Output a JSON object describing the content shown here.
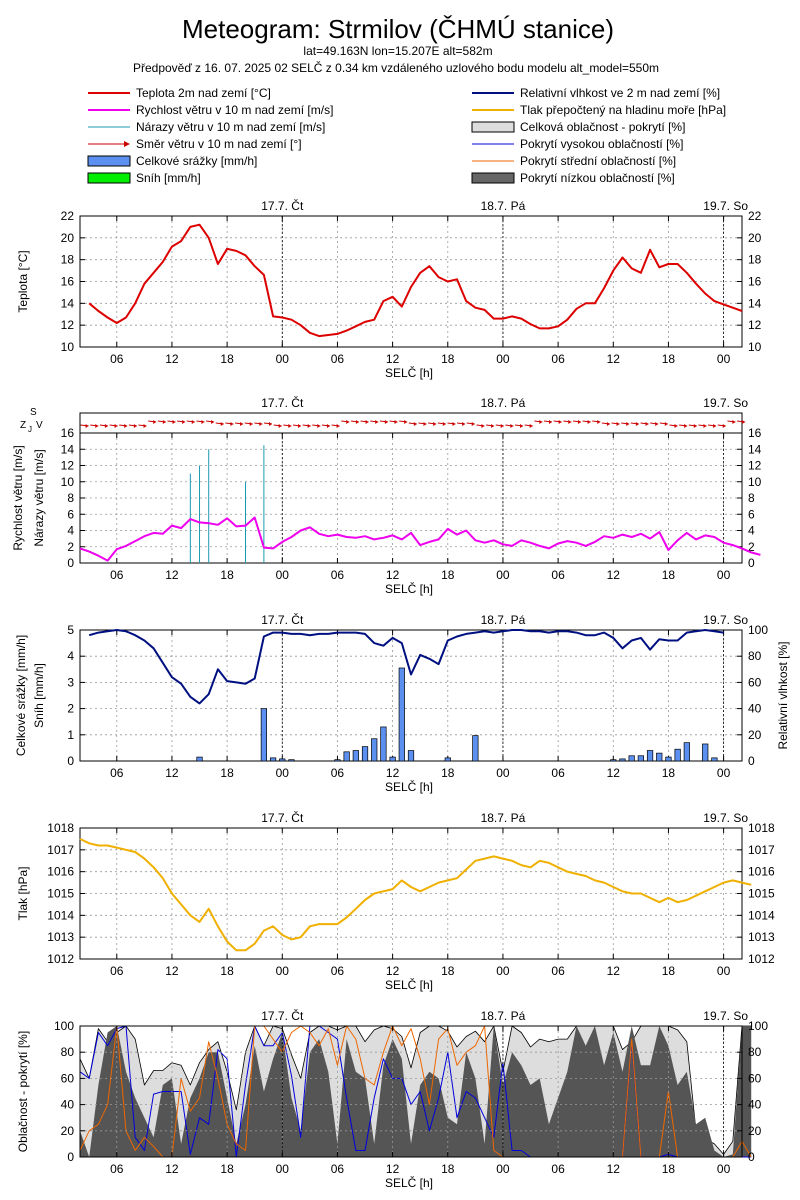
{
  "header": {
    "title": "Meteogram: Strmilov (ČHMÚ stanice)",
    "coords": "lat=49.163N lon=15.207E alt=582m",
    "forecast": "Předpověď z 16. 07. 2025 02 SELČ z 0.34 km vzdáleného uzlového bodu modelu alt_model=550m"
  },
  "legend": {
    "left": [
      {
        "label": "Teplota 2m nad zemí [°C]",
        "kind": "line",
        "color": "#dd0000"
      },
      {
        "label": "Rychlost větru v 10 m nad zemí [m/s]",
        "kind": "line",
        "color": "#ee00ee"
      },
      {
        "label": "Nárazy větru v 10 m nad zemí [m/s]",
        "kind": "thin",
        "color": "#1a9ab0"
      },
      {
        "label": "Směr větru v 10 m nad zemí [°]",
        "kind": "arrow",
        "color": "#cc0000"
      },
      {
        "label": "Celkové srážky [mm/h]",
        "kind": "box",
        "color": "#5b8ff0"
      },
      {
        "label": "Sníh [mm/h]",
        "kind": "box",
        "color": "#00ee00"
      }
    ],
    "right": [
      {
        "label": "Relativní vlhkost ve 2 m nad zemí [%]",
        "kind": "line",
        "color": "#001080"
      },
      {
        "label": "Tlak přepočtený na hladinu moře [hPa]",
        "kind": "line",
        "color": "#f0b000"
      },
      {
        "label": "Celková oblačnost - pokrytí [%]",
        "kind": "box",
        "color": "#dddddd"
      },
      {
        "label": "Pokrytí vysokou oblačností [%]",
        "kind": "thin",
        "color": "#0000dd"
      },
      {
        "label": "Pokrytí střední oblačností [%]",
        "kind": "thin",
        "color": "#ee6600"
      },
      {
        "label": "Pokrytí nízkou oblačností [%]",
        "kind": "box",
        "color": "#666666"
      }
    ]
  },
  "days": [
    "17.7. Čt",
    "18.7. Pá",
    "19.7. So"
  ],
  "xlabel": "SELČ [h]",
  "xticks": [
    "06",
    "12",
    "18",
    "00",
    "06",
    "12",
    "18",
    "00",
    "06",
    "12",
    "18",
    "00"
  ],
  "chart_data": [
    {
      "type": "line",
      "ylabel": "Teplota [°C]",
      "ylim": [
        10,
        22
      ],
      "x_start_hour": 3,
      "series": [
        {
          "name": "Teplota 2m nad zemí [°C]",
          "color": "#dd0000",
          "values": [
            14,
            13.3,
            12.7,
            12.2,
            12.7,
            14,
            15.8,
            16.8,
            17.8,
            19.2,
            19.7,
            21,
            21.2,
            20,
            17.6,
            19,
            18.8,
            18.4,
            17.4,
            16.6,
            12.8,
            12.7,
            12.5,
            12,
            11.3,
            11,
            11.1,
            11.2,
            11.5,
            11.9,
            12.3,
            12.5,
            14.2,
            14.6,
            13.7,
            15.5,
            16.8,
            17.4,
            16.4,
            16,
            16.2,
            14.2,
            13.6,
            13.4,
            12.6,
            12.6,
            12.8,
            12.6,
            12.1,
            11.7,
            11.7,
            11.9,
            12.5,
            13.5,
            14,
            14,
            15.4,
            17,
            18.2,
            17.2,
            16.8,
            18.9,
            17.3,
            17.6,
            17.6,
            16.8,
            15.8,
            14.9,
            14.2,
            13.9,
            13.6,
            13.3
          ]
        }
      ]
    },
    {
      "type": "line",
      "ylabel": [
        "Rychlost větru [m/s]",
        "Nárazy větru [m/s]"
      ],
      "ylim": [
        0,
        16
      ],
      "x_start_hour": 3,
      "direction_label": "Z J S V",
      "series": [
        {
          "name": "Rychlost větru v 10 m nad zemí [m/s]",
          "color": "#ee00ee",
          "values": [
            1.8,
            1.4,
            0.9,
            0.3,
            1.7,
            2.1,
            2.7,
            3.3,
            3.7,
            3.6,
            4.6,
            4.3,
            5.4,
            5,
            4.9,
            4.7,
            5.5,
            4.5,
            4.6,
            5.6,
            1.9,
            1.8,
            2.6,
            3.2,
            4,
            4.4,
            3.6,
            3.3,
            3.5,
            3.2,
            3.1,
            3.3,
            2.9,
            3.1,
            3.4,
            2.9,
            3.7,
            2.2,
            2.6,
            2.9,
            4.2,
            3.5,
            4,
            2.8,
            2.5,
            2.8,
            2.3,
            2.1,
            2.8,
            2.5,
            2.1,
            1.8,
            2.4,
            2.7,
            2.5,
            2.1,
            2.6,
            3.3,
            3.1,
            3.5,
            3.2,
            3.6,
            3,
            3.8,
            1.6,
            2.8,
            3.7,
            2.9,
            3.4,
            3.2,
            2.5,
            2.2,
            1.8,
            1.3,
            1
          ],
          "x_start_hour": 2
        },
        {
          "name": "Nárazy větru v 10 m nad zemí [m/s]",
          "color": "#1a9ab0",
          "points": [
            [
              14,
              11
            ],
            [
              15,
              12
            ],
            [
              16,
              14
            ],
            [
              20,
              10
            ],
            [
              22,
              14.5
            ]
          ]
        }
      ]
    },
    {
      "type": "bar",
      "ylabel": [
        "Celkové srážky [mm/h]",
        "Sníh [mm/h]"
      ],
      "ylabel_right": "Relativní vlhkost [%]",
      "ylim": [
        0,
        5
      ],
      "ylim_right": [
        0,
        100
      ],
      "x_start_hour": 3,
      "series": [
        {
          "name": "Celkové srážky [mm/h]",
          "color": "#5b8ff0",
          "points": [
            [
              15,
              0.15
            ],
            [
              22,
              2
            ],
            [
              23,
              0.12
            ],
            [
              24,
              0.08
            ],
            [
              25,
              0.05
            ],
            [
              30,
              0.05
            ],
            [
              31,
              0.35
            ],
            [
              32,
              0.4
            ],
            [
              33,
              0.55
            ],
            [
              34,
              0.85
            ],
            [
              35,
              1.3
            ],
            [
              36,
              0.15
            ],
            [
              37,
              3.55
            ],
            [
              38,
              0.4
            ],
            [
              42,
              0.12
            ],
            [
              45,
              0.97
            ],
            [
              60,
              0.05
            ],
            [
              61,
              0.08
            ],
            [
              62,
              0.2
            ],
            [
              63,
              0.2
            ],
            [
              64,
              0.4
            ],
            [
              65,
              0.3
            ],
            [
              66,
              0.15
            ],
            [
              67,
              0.45
            ],
            [
              68,
              0.7
            ],
            [
              70,
              0.65
            ],
            [
              71,
              0.12
            ]
          ]
        },
        {
          "name": "Relativní vlhkost ve 2 m nad zemí [%]",
          "color": "#001080",
          "axis": "right",
          "values": [
            96,
            98,
            99,
            100,
            99,
            96,
            92,
            86,
            75,
            64,
            59,
            49,
            44,
            51,
            70,
            61,
            60,
            59,
            63,
            95,
            98,
            98,
            97,
            97,
            96,
            97,
            97,
            98,
            98,
            98,
            97,
            90,
            88,
            94,
            90,
            66,
            81,
            78,
            74,
            92,
            95,
            97,
            98,
            99,
            98,
            99,
            100,
            100,
            99,
            99,
            98,
            99,
            99,
            98,
            96,
            96,
            98,
            94,
            86,
            92,
            94,
            85,
            93,
            92,
            92,
            98,
            99,
            100,
            99,
            98
          ]
        }
      ]
    },
    {
      "type": "line",
      "ylabel": "Tlak [hPa]",
      "ylim": [
        1012,
        1018
      ],
      "x_start_hour": 2,
      "series": [
        {
          "name": "Tlak přepočtený na hladinu moře [hPa]",
          "color": "#f0b000",
          "values": [
            1017.5,
            1017.3,
            1017.2,
            1017.2,
            1017.1,
            1017,
            1016.9,
            1016.6,
            1016.2,
            1015.7,
            1015,
            1014.5,
            1014,
            1013.7,
            1014.3,
            1013.5,
            1012.8,
            1012.4,
            1012.4,
            1012.7,
            1013.3,
            1013.5,
            1013.1,
            1012.9,
            1013,
            1013.5,
            1013.6,
            1013.6,
            1013.6,
            1013.9,
            1014.3,
            1014.7,
            1015,
            1015.1,
            1015.2,
            1015.6,
            1015.3,
            1015.1,
            1015.3,
            1015.5,
            1015.6,
            1015.7,
            1016.1,
            1016.5,
            1016.6,
            1016.7,
            1016.6,
            1016.5,
            1016.3,
            1016.2,
            1016.5,
            1016.4,
            1016.2,
            1016,
            1015.9,
            1015.8,
            1015.6,
            1015.5,
            1015.3,
            1015.1,
            1015,
            1015,
            1014.8,
            1014.6,
            1014.8,
            1014.6,
            1014.7,
            1014.9,
            1015.1,
            1015.3,
            1015.5,
            1015.6,
            1015.5,
            1015.4
          ]
        }
      ]
    },
    {
      "type": "area",
      "ylabel": "Oblačnost - pokrytí [%]",
      "ylim": [
        0,
        100
      ],
      "x_start_hour": 2,
      "series": [
        {
          "name": "Celková oblačnost - pokrytí [%]",
          "color": "#dddddd",
          "values": [
            75,
            60,
            98,
            88,
            95,
            100,
            90,
            55,
            66,
            66,
            72,
            70,
            55,
            72,
            82,
            88,
            65,
            36,
            80,
            100,
            85,
            100,
            98,
            78,
            60,
            95,
            100,
            100,
            97,
            100,
            100,
            88,
            97,
            100,
            98,
            92,
            68,
            95,
            100,
            100,
            96,
            84,
            92,
            96,
            88,
            100,
            65,
            100,
            95,
            84,
            90,
            88,
            90,
            90,
            100,
            100,
            100,
            100,
            100,
            82,
            88,
            100,
            100,
            100,
            100,
            97,
            88,
            20,
            14,
            10,
            2,
            12,
            100,
            100
          ]
        },
        {
          "name": "Pokrytí nízkou oblačností [%]",
          "color": "#555555",
          "values": [
            20,
            0,
            55,
            95,
            100,
            65,
            45,
            30,
            15,
            55,
            60,
            10,
            45,
            60,
            80,
            80,
            45,
            10,
            40,
            85,
            50,
            75,
            95,
            45,
            20,
            80,
            90,
            65,
            10,
            90,
            65,
            60,
            10,
            70,
            90,
            75,
            10,
            55,
            65,
            60,
            30,
            25,
            80,
            60,
            10,
            100,
            55,
            80,
            70,
            55,
            60,
            25,
            45,
            65,
            100,
            85,
            100,
            70,
            95,
            65,
            100,
            70,
            70,
            100,
            85,
            55,
            65,
            25,
            30,
            5,
            0,
            2,
            100,
            100
          ]
        },
        {
          "name": "Pokrytí vysokou oblačností [%]",
          "color": "#0000dd",
          "values": [
            65,
            60,
            95,
            85,
            98,
            100,
            15,
            5,
            48,
            50,
            50,
            50,
            2,
            30,
            25,
            82,
            75,
            0,
            55,
            100,
            85,
            85,
            95,
            62,
            15,
            100,
            100,
            95,
            90,
            45,
            5,
            5,
            45,
            75,
            60,
            60,
            40,
            50,
            20,
            45,
            80,
            30,
            50,
            45,
            30,
            15,
            72,
            5,
            5,
            0,
            0,
            0,
            0,
            0,
            0,
            0,
            0,
            0,
            0,
            0,
            88,
            0,
            0,
            0,
            2,
            0,
            0,
            0,
            0,
            0,
            0,
            0,
            0,
            0
          ]
        },
        {
          "name": "Pokrytí střední oblačností [%]",
          "color": "#ee6600",
          "values": [
            5,
            20,
            25,
            40,
            100,
            20,
            5,
            15,
            8,
            0,
            0,
            60,
            35,
            45,
            88,
            60,
            25,
            10,
            5,
            100,
            100,
            90,
            80,
            95,
            100,
            95,
            85,
            98,
            70,
            100,
            90,
            60,
            55,
            80,
            100,
            85,
            98,
            75,
            40,
            90,
            98,
            70,
            80,
            85,
            100,
            5,
            0,
            0,
            0,
            0,
            0,
            0,
            0,
            0,
            0,
            0,
            0,
            0,
            0,
            0,
            90,
            0,
            0,
            0,
            50,
            0,
            0,
            0,
            0,
            0,
            0,
            0,
            12,
            0
          ]
        }
      ]
    }
  ]
}
